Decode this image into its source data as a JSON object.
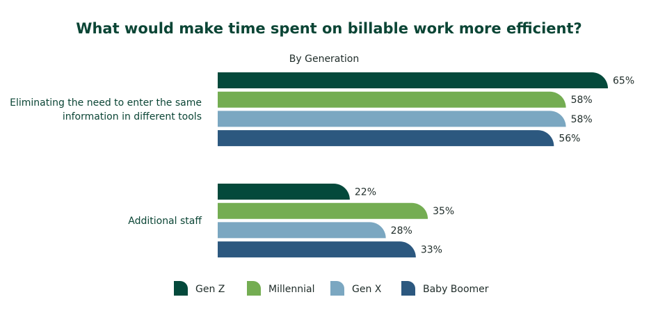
{
  "chart_data": {
    "type": "bar",
    "orientation": "horizontal",
    "title": "What would make time spent on billable work more efficient?",
    "subtitle": "By Generation",
    "categories": [
      [
        "Eliminating the need to enter the same",
        "information in different tools"
      ],
      [
        "Additional staff"
      ]
    ],
    "series": [
      {
        "name": "Gen Z",
        "color": "#04493b",
        "values": [
          65,
          22
        ]
      },
      {
        "name": "Millennial",
        "color": "#74ad52",
        "values": [
          58,
          35
        ]
      },
      {
        "name": "Gen X",
        "color": "#7ba7c1",
        "values": [
          58,
          28
        ]
      },
      {
        "name": "Baby Boomer",
        "color": "#2c587f",
        "values": [
          56,
          33
        ]
      }
    ],
    "value_suffix": "%",
    "xlim": [
      0,
      100
    ],
    "grid": false,
    "legend_position": "bottom"
  }
}
